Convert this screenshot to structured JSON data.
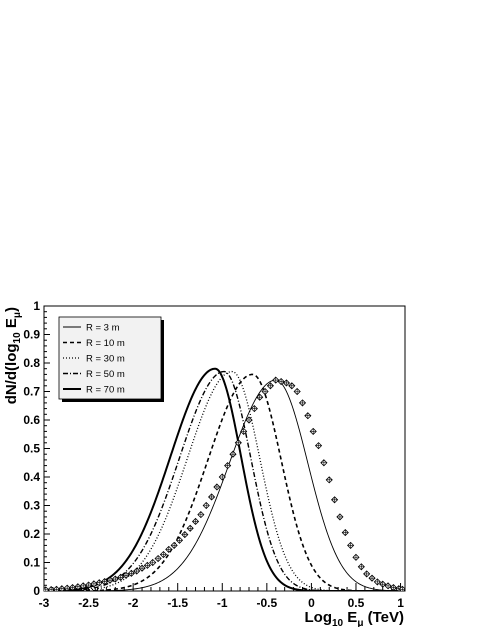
{
  "chart_data": {
    "type": "line",
    "title": "",
    "xlabel": {
      "base": "Log",
      "sub1": "10",
      "mid": " E",
      "sub2": "μ",
      "unit": " (TeV)"
    },
    "ylabel": {
      "prefix": "dN/d(log",
      "sub1": "10",
      "mid": " E",
      "sub2": "μ",
      "suffix": ")"
    },
    "xlim": [
      -3,
      1.05
    ],
    "ylim": [
      0,
      1
    ],
    "x_ticks": [
      -3,
      -2.5,
      -2,
      -1.5,
      -1,
      -0.5,
      0,
      0.5,
      1
    ],
    "x_tick_labels": [
      "-3",
      "-2.5",
      "-2",
      "-1.5",
      "-1",
      "-0.5",
      "0",
      "0.5",
      "1"
    ],
    "y_ticks": [
      0,
      0.1,
      0.2,
      0.3,
      0.4,
      0.5,
      0.6,
      0.7,
      0.8,
      0.9,
      1
    ],
    "y_tick_labels": [
      "0",
      "0.1",
      "0.2",
      "0.3",
      "0.4",
      "0.5",
      "0.6",
      "0.7",
      "0.8",
      "0.9",
      "1"
    ],
    "grid": false,
    "legend_position": "top-left",
    "series": [
      {
        "name": "R = 3 m",
        "style": "solid-thin",
        "peak_x": -0.4,
        "peak_y": 0.74,
        "sigma_left": 0.52,
        "sigma_right": 0.36
      },
      {
        "name": "R = 10 m",
        "style": "dashed",
        "peak_x": -0.66,
        "peak_y": 0.76,
        "sigma_left": 0.5,
        "sigma_right": 0.32
      },
      {
        "name": "R = 30 m",
        "style": "dotted",
        "peak_x": -0.89,
        "peak_y": 0.77,
        "sigma_left": 0.5,
        "sigma_right": 0.31
      },
      {
        "name": "R = 50 m",
        "style": "dash-dot",
        "peak_x": -0.98,
        "peak_y": 0.77,
        "sigma_left": 0.5,
        "sigma_right": 0.3
      },
      {
        "name": "R = 70 m",
        "style": "solid-thick",
        "peak_x": -1.08,
        "peak_y": 0.78,
        "sigma_left": 0.5,
        "sigma_right": 0.29
      }
    ],
    "markers": {
      "shape": "open-diamond-cross",
      "points": [
        [
          -2.98,
          0.004
        ],
        [
          -2.92,
          0.005
        ],
        [
          -2.86,
          0.006
        ],
        [
          -2.8,
          0.008
        ],
        [
          -2.74,
          0.01
        ],
        [
          -2.68,
          0.012
        ],
        [
          -2.62,
          0.015
        ],
        [
          -2.56,
          0.018
        ],
        [
          -2.5,
          0.021
        ],
        [
          -2.44,
          0.025
        ],
        [
          -2.38,
          0.029
        ],
        [
          -2.32,
          0.033
        ],
        [
          -2.26,
          0.038
        ],
        [
          -2.2,
          0.042
        ],
        [
          -2.14,
          0.048
        ],
        [
          -2.08,
          0.055
        ],
        [
          -2.02,
          0.062
        ],
        [
          -1.96,
          0.07
        ],
        [
          -1.9,
          0.08
        ],
        [
          -1.84,
          0.09
        ],
        [
          -1.78,
          0.1
        ],
        [
          -1.72,
          0.114
        ],
        [
          -1.66,
          0.128
        ],
        [
          -1.6,
          0.146
        ],
        [
          -1.54,
          0.16
        ],
        [
          -1.48,
          0.178
        ],
        [
          -1.42,
          0.198
        ],
        [
          -1.36,
          0.22
        ],
        [
          -1.3,
          0.244
        ],
        [
          -1.24,
          0.268
        ],
        [
          -1.18,
          0.3
        ],
        [
          -1.12,
          0.33
        ],
        [
          -1.06,
          0.365
        ],
        [
          -1.0,
          0.4
        ],
        [
          -0.94,
          0.44
        ],
        [
          -0.88,
          0.48
        ],
        [
          -0.82,
          0.52
        ],
        [
          -0.76,
          0.56
        ],
        [
          -0.7,
          0.6
        ],
        [
          -0.64,
          0.64
        ],
        [
          -0.58,
          0.68
        ],
        [
          -0.52,
          0.7
        ],
        [
          -0.46,
          0.72
        ],
        [
          -0.4,
          0.74
        ],
        [
          -0.34,
          0.735
        ],
        [
          -0.28,
          0.73
        ],
        [
          -0.22,
          0.72
        ],
        [
          -0.16,
          0.7
        ],
        [
          -0.1,
          0.66
        ],
        [
          -0.04,
          0.615
        ],
        [
          0.02,
          0.56
        ],
        [
          0.08,
          0.51
        ],
        [
          0.14,
          0.45
        ],
        [
          0.2,
          0.39
        ],
        [
          0.26,
          0.32
        ],
        [
          0.32,
          0.26
        ],
        [
          0.38,
          0.205
        ],
        [
          0.44,
          0.16
        ],
        [
          0.5,
          0.118
        ],
        [
          0.56,
          0.085
        ],
        [
          0.62,
          0.06
        ],
        [
          0.68,
          0.045
        ],
        [
          0.74,
          0.032
        ],
        [
          0.8,
          0.024
        ],
        [
          0.86,
          0.018
        ],
        [
          0.92,
          0.012
        ],
        [
          0.98,
          0.008
        ],
        [
          1.02,
          0.006
        ]
      ]
    }
  }
}
